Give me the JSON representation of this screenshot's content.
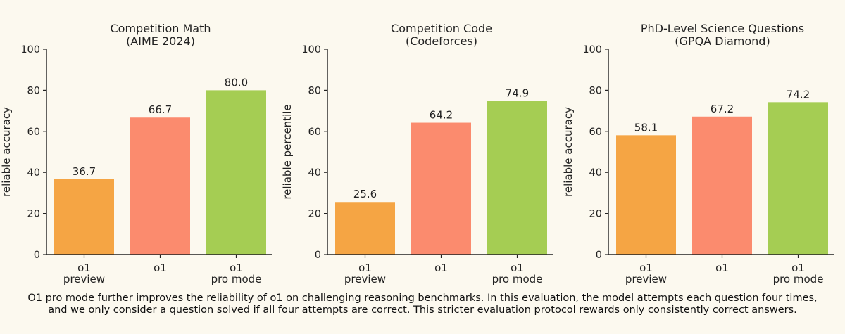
{
  "colors": {
    "background": "#fcf9ef",
    "bars": [
      "#f5a544",
      "#fb8b6e",
      "#a5cd53"
    ],
    "axis": "#222222"
  },
  "chart_data": [
    {
      "type": "bar",
      "title": "Competition Math",
      "subtitle": "(AIME 2024)",
      "ylabel": "reliable accuracy",
      "ylim": [
        0,
        100
      ],
      "yticks": [
        0,
        20,
        40,
        60,
        80,
        100
      ],
      "categories": [
        [
          "o1",
          "preview"
        ],
        [
          "o1"
        ],
        [
          "o1",
          "pro mode"
        ]
      ],
      "values": [
        36.7,
        66.7,
        80.0
      ],
      "value_labels": [
        "36.7",
        "66.7",
        "80.0"
      ]
    },
    {
      "type": "bar",
      "title": "Competition Code",
      "subtitle": "(Codeforces)",
      "ylabel": "reliable percentile",
      "ylim": [
        0,
        100
      ],
      "yticks": [
        0,
        20,
        40,
        60,
        80,
        100
      ],
      "categories": [
        [
          "o1",
          "preview"
        ],
        [
          "o1"
        ],
        [
          "o1",
          "pro mode"
        ]
      ],
      "values": [
        25.6,
        64.2,
        74.9
      ],
      "value_labels": [
        "25.6",
        "64.2",
        "74.9"
      ]
    },
    {
      "type": "bar",
      "title": "PhD-Level Science Questions",
      "subtitle": "(GPQA Diamond)",
      "ylabel": "reliable accuracy",
      "ylim": [
        0,
        100
      ],
      "yticks": [
        0,
        20,
        40,
        60,
        80,
        100
      ],
      "categories": [
        [
          "o1",
          "preview"
        ],
        [
          "o1"
        ],
        [
          "o1",
          "pro mode"
        ]
      ],
      "values": [
        58.1,
        67.2,
        74.2
      ],
      "value_labels": [
        "58.1",
        "67.2",
        "74.2"
      ]
    }
  ],
  "caption": {
    "lines": [
      "O1 pro mode further improves the reliability of o1 on challenging reasoning benchmarks. In this evaluation, the model attempts each question four times,",
      "and we only consider a question solved if all four attempts are correct. This stricter evaluation protocol rewards only consistently correct answers."
    ]
  }
}
